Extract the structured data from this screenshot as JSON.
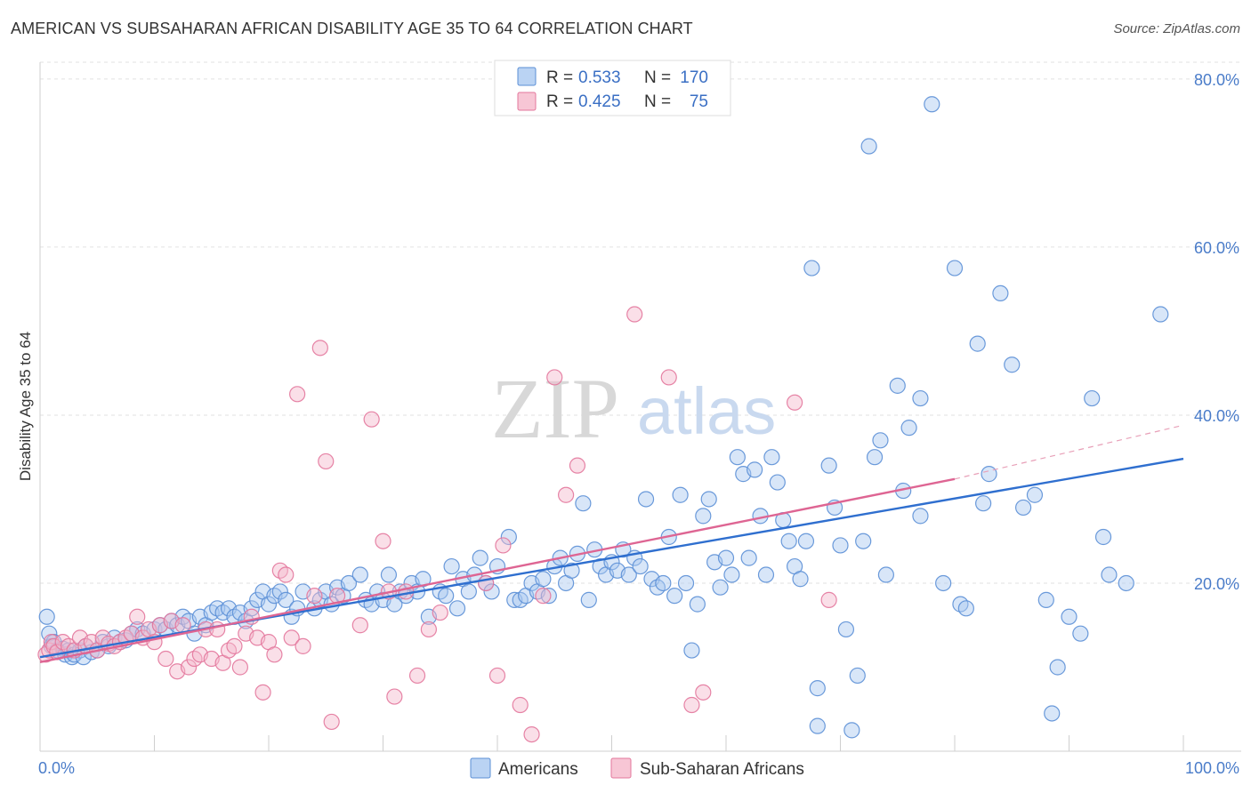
{
  "title": "AMERICAN VS SUBSAHARAN AFRICAN DISABILITY AGE 35 TO 64 CORRELATION CHART",
  "source": "Source: ZipAtlas.com",
  "watermark": {
    "zip": "ZIP",
    "atlas": "atlas"
  },
  "legend": {
    "r_label": "R =",
    "n_label": "N =",
    "rows": [
      {
        "r": "0.533",
        "n": "170",
        "color": "#a9c8f0"
      },
      {
        "r": "0.425",
        "n": "75",
        "color": "#f5b8cb"
      }
    ]
  },
  "chart_data": {
    "type": "scatter",
    "title": "AMERICAN VS SUBSAHARAN AFRICAN DISABILITY AGE 35 TO 64 CORRELATION CHART",
    "xlabel": "",
    "ylabel": "Disability Age 35 to 64",
    "xlim": [
      0,
      100
    ],
    "ylim": [
      0,
      82
    ],
    "x_tick_labels": [
      "0.0%",
      "100.0%"
    ],
    "y_ticks": [
      20,
      40,
      60,
      80
    ],
    "y_tick_labels": [
      "20.0%",
      "40.0%",
      "60.0%",
      "80.0%"
    ],
    "grid": true,
    "legend_position": "top-center",
    "series": [
      {
        "name": "Americans",
        "color": "#5b8fd6",
        "fill": "#a9c8f0",
        "trend": {
          "x0": 0,
          "y0": 11.2,
          "x1": 100,
          "y1": 34.8
        },
        "points": [
          [
            0.6,
            16
          ],
          [
            0.8,
            14
          ],
          [
            1,
            12.5
          ],
          [
            1.2,
            13
          ],
          [
            1.5,
            12
          ],
          [
            2,
            12.2
          ],
          [
            2.2,
            11.5
          ],
          [
            2.5,
            12
          ],
          [
            2.8,
            11.2
          ],
          [
            3,
            11.5
          ],
          [
            3.5,
            12
          ],
          [
            3.8,
            11.2
          ],
          [
            4,
            12.5
          ],
          [
            4.5,
            11.8
          ],
          [
            5,
            12
          ],
          [
            5.5,
            13
          ],
          [
            6,
            12.5
          ],
          [
            6.5,
            13.5
          ],
          [
            7,
            13
          ],
          [
            7.5,
            13.2
          ],
          [
            8,
            14
          ],
          [
            8.5,
            14.5
          ],
          [
            9,
            14
          ],
          [
            10,
            14.5
          ],
          [
            10.5,
            15
          ],
          [
            11,
            14.5
          ],
          [
            11.5,
            15.5
          ],
          [
            12,
            15
          ],
          [
            12.5,
            16
          ],
          [
            13,
            15.5
          ],
          [
            13.5,
            14
          ],
          [
            14,
            16
          ],
          [
            14.5,
            15
          ],
          [
            15,
            16.5
          ],
          [
            15.5,
            17
          ],
          [
            16,
            16.5
          ],
          [
            16.5,
            17
          ],
          [
            17,
            16
          ],
          [
            17.5,
            16.5
          ],
          [
            18,
            15.5
          ],
          [
            18.5,
            17
          ],
          [
            19,
            18
          ],
          [
            19.5,
            19
          ],
          [
            20,
            17.5
          ],
          [
            20.5,
            18.5
          ],
          [
            21,
            19
          ],
          [
            21.5,
            18
          ],
          [
            22,
            16
          ],
          [
            22.5,
            17
          ],
          [
            23,
            19
          ],
          [
            24,
            17
          ],
          [
            24.5,
            18
          ],
          [
            25,
            19
          ],
          [
            25.5,
            17.5
          ],
          [
            26,
            19.5
          ],
          [
            26.5,
            18.5
          ],
          [
            27,
            20
          ],
          [
            28,
            21
          ],
          [
            28.5,
            18
          ],
          [
            29,
            17.5
          ],
          [
            29.5,
            19
          ],
          [
            30,
            18
          ],
          [
            30.5,
            21
          ],
          [
            31,
            17.5
          ],
          [
            31.5,
            19
          ],
          [
            32,
            18.5
          ],
          [
            32.5,
            20
          ],
          [
            33,
            19
          ],
          [
            33.5,
            20.5
          ],
          [
            34,
            16
          ],
          [
            35,
            19
          ],
          [
            35.5,
            18.5
          ],
          [
            36,
            22
          ],
          [
            36.5,
            17
          ],
          [
            37,
            20.5
          ],
          [
            37.5,
            19
          ],
          [
            38,
            21
          ],
          [
            38.5,
            23
          ],
          [
            39,
            20
          ],
          [
            39.5,
            19
          ],
          [
            40,
            22
          ],
          [
            41,
            25.5
          ],
          [
            41.5,
            18
          ],
          [
            42,
            18
          ],
          [
            42.5,
            18.5
          ],
          [
            43,
            20
          ],
          [
            43.5,
            19
          ],
          [
            44,
            20.5
          ],
          [
            44.5,
            18.5
          ],
          [
            45,
            22
          ],
          [
            45.5,
            23
          ],
          [
            46,
            20
          ],
          [
            46.5,
            21.5
          ],
          [
            47,
            23.5
          ],
          [
            47.5,
            29.5
          ],
          [
            48,
            18
          ],
          [
            48.5,
            24
          ],
          [
            49,
            22
          ],
          [
            49.5,
            21
          ],
          [
            50,
            22.5
          ],
          [
            50.5,
            21.5
          ],
          [
            51,
            24
          ],
          [
            51.5,
            21
          ],
          [
            52,
            23
          ],
          [
            52.5,
            22
          ],
          [
            53,
            30
          ],
          [
            53.5,
            20.5
          ],
          [
            54,
            19.5
          ],
          [
            54.5,
            20
          ],
          [
            55,
            25.5
          ],
          [
            55.5,
            18.5
          ],
          [
            56,
            30.5
          ],
          [
            56.5,
            20
          ],
          [
            57,
            12
          ],
          [
            57.5,
            17.5
          ],
          [
            58,
            28
          ],
          [
            58.5,
            30
          ],
          [
            59,
            22.5
          ],
          [
            59.5,
            19.5
          ],
          [
            60,
            23
          ],
          [
            60.5,
            21
          ],
          [
            61,
            35
          ],
          [
            61.5,
            33
          ],
          [
            62,
            23
          ],
          [
            62.5,
            33.5
          ],
          [
            63,
            28
          ],
          [
            63.5,
            21
          ],
          [
            64,
            35
          ],
          [
            64.5,
            32
          ],
          [
            65,
            27.5
          ],
          [
            65.5,
            25
          ],
          [
            66,
            22
          ],
          [
            66.5,
            20.5
          ],
          [
            67,
            25
          ],
          [
            67.5,
            57.5
          ],
          [
            68,
            7.5
          ],
          [
            68,
            3
          ],
          [
            69,
            34
          ],
          [
            69.5,
            29
          ],
          [
            70,
            24.5
          ],
          [
            70.5,
            14.5
          ],
          [
            71,
            2.5
          ],
          [
            71.5,
            9
          ],
          [
            72,
            25
          ],
          [
            72.5,
            72
          ],
          [
            73,
            35
          ],
          [
            73.5,
            37
          ],
          [
            74,
            21
          ],
          [
            75,
            43.5
          ],
          [
            75.5,
            31
          ],
          [
            76,
            38.5
          ],
          [
            77,
            42
          ],
          [
            77,
            28
          ],
          [
            78,
            77
          ],
          [
            79,
            20
          ],
          [
            80,
            57.5
          ],
          [
            80.5,
            17.5
          ],
          [
            81,
            17
          ],
          [
            82,
            48.5
          ],
          [
            82.5,
            29.5
          ],
          [
            83,
            33
          ],
          [
            84,
            54.5
          ],
          [
            85,
            46
          ],
          [
            86,
            29
          ],
          [
            87,
            30.5
          ],
          [
            88,
            18
          ],
          [
            88.5,
            4.5
          ],
          [
            89,
            10
          ],
          [
            90,
            16
          ],
          [
            91,
            14
          ],
          [
            92,
            42
          ],
          [
            93,
            25.5
          ],
          [
            93.5,
            21
          ],
          [
            95,
            20
          ],
          [
            98,
            52
          ]
        ]
      },
      {
        "name": "Sub-Saharan Africans",
        "color": "#e3779c",
        "fill": "#f5b8cb",
        "trend": {
          "x0": 0,
          "y0": 10.6,
          "x1": 80,
          "y1": 32.4
        },
        "trend_dashed": {
          "x0": 80,
          "y0": 32.4,
          "x1": 100,
          "y1": 38.8
        },
        "points": [
          [
            0.5,
            11.5
          ],
          [
            0.8,
            12
          ],
          [
            1,
            13
          ],
          [
            1.2,
            12.5
          ],
          [
            1.5,
            11.8
          ],
          [
            2,
            13
          ],
          [
            2.5,
            12.5
          ],
          [
            3,
            12
          ],
          [
            3.5,
            13.5
          ],
          [
            4,
            12.5
          ],
          [
            4.5,
            13
          ],
          [
            5,
            12
          ],
          [
            5.5,
            13.5
          ],
          [
            6,
            12.8
          ],
          [
            6.5,
            12.5
          ],
          [
            7,
            13
          ],
          [
            7.5,
            13.5
          ],
          [
            8,
            14
          ],
          [
            8.5,
            16
          ],
          [
            9,
            13.5
          ],
          [
            9.5,
            14.5
          ],
          [
            10,
            13
          ],
          [
            10.5,
            15
          ],
          [
            11,
            11
          ],
          [
            11.5,
            15.5
          ],
          [
            12,
            9.5
          ],
          [
            12.5,
            15
          ],
          [
            13,
            10
          ],
          [
            13.5,
            11
          ],
          [
            14,
            11.5
          ],
          [
            14.5,
            14.5
          ],
          [
            15,
            11
          ],
          [
            15.5,
            14.5
          ],
          [
            16,
            10.5
          ],
          [
            16.5,
            12
          ],
          [
            17,
            12.5
          ],
          [
            17.5,
            10
          ],
          [
            18,
            14
          ],
          [
            18.5,
            16
          ],
          [
            19,
            13.5
          ],
          [
            19.5,
            7
          ],
          [
            20,
            13
          ],
          [
            20.5,
            11.5
          ],
          [
            21,
            21.5
          ],
          [
            21.5,
            21
          ],
          [
            22,
            13.5
          ],
          [
            22.5,
            42.5
          ],
          [
            23,
            12.5
          ],
          [
            24,
            18.5
          ],
          [
            24.5,
            48
          ],
          [
            25,
            34.5
          ],
          [
            25.5,
            3.5
          ],
          [
            26,
            18.5
          ],
          [
            28,
            15
          ],
          [
            29,
            39.5
          ],
          [
            30,
            25
          ],
          [
            30.5,
            19
          ],
          [
            31,
            6.5
          ],
          [
            32,
            19
          ],
          [
            33,
            9
          ],
          [
            34,
            14.5
          ],
          [
            35,
            16.5
          ],
          [
            39,
            20
          ],
          [
            40,
            9
          ],
          [
            40.5,
            24.5
          ],
          [
            42,
            5.5
          ],
          [
            43,
            2
          ],
          [
            44,
            18.5
          ],
          [
            45,
            44.5
          ],
          [
            46,
            30.5
          ],
          [
            47,
            34
          ],
          [
            52,
            52
          ],
          [
            55,
            44.5
          ],
          [
            57,
            5.5
          ],
          [
            58,
            7
          ],
          [
            66,
            41.5
          ],
          [
            69,
            18
          ]
        ]
      }
    ]
  },
  "bottom_legend": [
    {
      "label": "Americans",
      "color": "#a9c8f0",
      "stroke": "#5b8fd6"
    },
    {
      "label": "Sub-Saharan Africans",
      "color": "#f5b8cb",
      "stroke": "#e3779c"
    }
  ]
}
